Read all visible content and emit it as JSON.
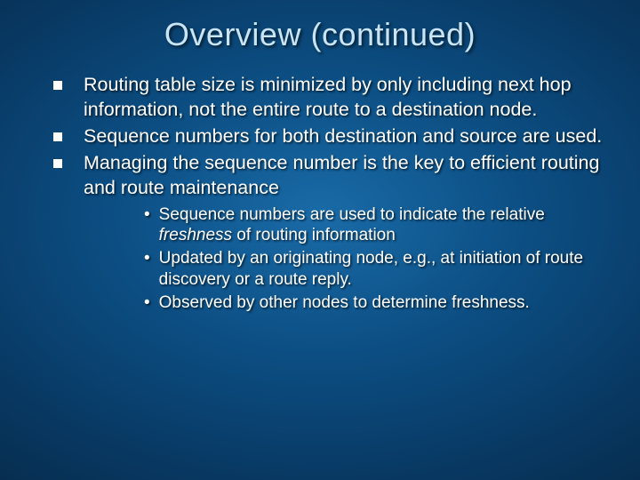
{
  "slide": {
    "title": "Overview (continued)",
    "background": {
      "gradient_center": "#1a6ba8",
      "gradient_mid": "#0c4f84",
      "gradient_outer": "#083862",
      "gradient_edge": "#062845"
    },
    "title_color": "#c9e4f2",
    "text_color": "#ffffff",
    "title_fontsize": 36,
    "body_fontsize": 21.5,
    "sub_fontsize": 19,
    "main_bullets": [
      "Routing table size is minimized by only including next hop information, not the entire route to a destination node.",
      "Sequence numbers for both destination and source are used.",
      "Managing the sequence number is the key to efficient routing and route maintenance"
    ],
    "sub_bullets": [
      {
        "prefix": "Sequence numbers are used to indicate the relative ",
        "italic": "freshness",
        "suffix": " of routing information"
      },
      {
        "prefix": "Updated by an originating node, e.g., at initiation of route discovery or a route reply.",
        "italic": "",
        "suffix": ""
      },
      {
        "prefix": "Observed by other nodes to determine freshness.",
        "italic": "",
        "suffix": ""
      }
    ]
  }
}
